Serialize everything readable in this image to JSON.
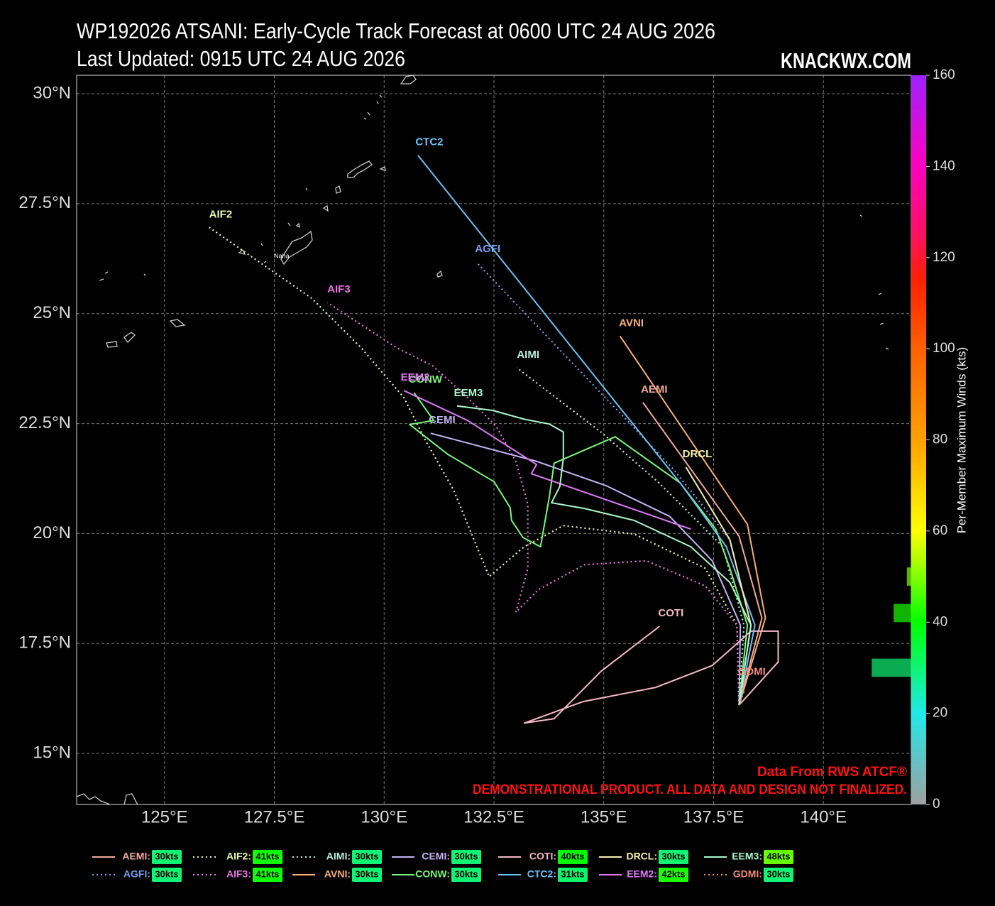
{
  "chart_data": {
    "type": "line",
    "title": "WP192026 ATSANI: Early-Cycle Track Forecast at 0600 UTC 24 AUG 2026",
    "subtitle": "Last Updated: 0915 UTC 24 AUG 2026",
    "brand": "KNACKWX.COM",
    "credit": "Data From RWS ATCF®",
    "disclaimer": "DEMONSTRATIONAL PRODUCT. ALL DATA AND DESIGN NOT FINALIZED.",
    "place_label": "Naha",
    "xlim": [
      123,
      142
    ],
    "ylim": [
      13.84,
      30.42
    ],
    "xticks": [
      {
        "value": 125,
        "label": "125°E"
      },
      {
        "value": 127.5,
        "label": "127.5°E"
      },
      {
        "value": 130,
        "label": "130°E"
      },
      {
        "value": 132.5,
        "label": "132.5°E"
      },
      {
        "value": 135,
        "label": "135°E"
      },
      {
        "value": 137.5,
        "label": "137.5°E"
      },
      {
        "value": 140,
        "label": "140°E"
      }
    ],
    "yticks": [
      {
        "value": 15,
        "label": "15°N"
      },
      {
        "value": 17.5,
        "label": "17.5°N"
      },
      {
        "value": 20,
        "label": "20°N"
      },
      {
        "value": 22.5,
        "label": "22.5°N"
      },
      {
        "value": 25,
        "label": "25°N"
      },
      {
        "value": 27.5,
        "label": "27.5°N"
      },
      {
        "value": 30,
        "label": "30°N"
      }
    ],
    "grid": true,
    "colorbar": {
      "label": "Per-Member Maximum Winds (kts)",
      "lim": [
        0,
        160
      ],
      "ticks": [
        0,
        20,
        40,
        60,
        80,
        100,
        120,
        140,
        160
      ]
    },
    "wind_histogram": {
      "bins": [
        28,
        32,
        36,
        40,
        44,
        48,
        52
      ],
      "counts": [
        9,
        0,
        0,
        4,
        0,
        1
      ]
    },
    "series": [
      {
        "name": "AEMI",
        "legend_label": "AEMI:",
        "color": "#f4a9a0",
        "dash": false,
        "wind": 30,
        "wind_label": "30kts",
        "x": [
          138.08,
          138.6,
          138.08,
          135.89
        ],
        "y": [
          16.1,
          18.08,
          19.94,
          22.98
        ]
      },
      {
        "name": "AGFI",
        "legend_label": "AGFI:",
        "color": "#7b9df0",
        "dash": true,
        "wind": 30,
        "wind_label": "30kts",
        "x": [
          138.08,
          138.35,
          137.87,
          136.58,
          132.1
        ],
        "y": [
          16.1,
          17.92,
          19.86,
          21.47,
          26.17
        ]
      },
      {
        "name": "AIF2",
        "legend_label": "AIF2:",
        "color": "#e8f8a8",
        "dash": true,
        "wind": 41,
        "wind_label": "41kts",
        "x": [
          138.08,
          138.03,
          137.31,
          135.69,
          134.08,
          133.19,
          132.39,
          131.58,
          130.94,
          130.45,
          129.48,
          128.35,
          126.02
        ],
        "y": [
          16.1,
          17.92,
          19.21,
          19.99,
          20.18,
          19.7,
          19.02,
          20.99,
          22.12,
          23.09,
          24.22,
          25.35,
          26.96
        ]
      },
      {
        "name": "AIF3",
        "legend_label": "AIF3:",
        "color": "#ee72e8",
        "dash": true,
        "wind": 41,
        "wind_label": "41kts",
        "x": [
          138.08,
          138.03,
          137.31,
          135.97,
          134.56,
          133.52,
          133.0,
          133.27,
          133.27,
          133.0,
          132.55,
          131.9,
          131.1,
          130.29,
          128.71
        ],
        "y": [
          16.1,
          17.92,
          18.81,
          19.38,
          19.29,
          18.73,
          18.21,
          19.21,
          20.67,
          21.64,
          22.44,
          23.09,
          23.82,
          24.22,
          25.25
        ]
      },
      {
        "name": "AIMI",
        "legend_label": "AIMI:",
        "color": "#b8f0dc",
        "dash": true,
        "wind": 30,
        "wind_label": "30kts",
        "x": [
          138.08,
          138.19,
          137.71,
          136.26,
          134.97,
          133.02
        ],
        "y": [
          16.1,
          17.92,
          19.7,
          21.15,
          22.28,
          23.77
        ]
      },
      {
        "name": "AVNI",
        "legend_label": "AVNI:",
        "color": "#f8b070",
        "dash": false,
        "wind": 30,
        "wind_label": "30kts",
        "x": [
          138.08,
          138.68,
          138.27,
          135.37
        ],
        "y": [
          16.1,
          18.08,
          20.21,
          24.49
        ]
      },
      {
        "name": "CEMI",
        "legend_label": "CEMI:",
        "color": "#c4b4f8",
        "dash": false,
        "wind": 30,
        "wind_label": "30kts",
        "x": [
          138.08,
          138.11,
          137.47,
          136.5,
          135.05,
          133.48,
          131.06
        ],
        "y": [
          16.1,
          17.92,
          19.38,
          20.39,
          21.09,
          21.64,
          22.28
        ]
      },
      {
        "name": "CONW",
        "legend_label": "CONW:",
        "color": "#78f878",
        "dash": false,
        "wind": 30,
        "wind_label": "30kts",
        "x": [
          138.08,
          138.27,
          137.87,
          137.55,
          136.74,
          135.26,
          133.87,
          133.76,
          133.56,
          133.16,
          132.9,
          132.87,
          132.5,
          131.45,
          130.58,
          131.13,
          130.68
        ],
        "y": [
          16.1,
          17.92,
          19.21,
          20.1,
          21.15,
          22.2,
          21.6,
          20.83,
          19.7,
          19.91,
          20.3,
          20.59,
          21.18,
          21.8,
          22.48,
          22.57,
          23.2
        ]
      },
      {
        "name": "COTI",
        "legend_label": "COTI:",
        "color": "#f8b8c8",
        "dash": false,
        "wind": 40,
        "wind_label": "40kts",
        "x": [
          138.08,
          138.97,
          138.97,
          138.35,
          137.47,
          136.18,
          134.53,
          133.19,
          133.87,
          134.94,
          136.27
        ],
        "y": [
          16.1,
          17.08,
          17.78,
          17.78,
          17.0,
          16.5,
          16.18,
          15.69,
          15.79,
          16.87,
          17.89
        ]
      },
      {
        "name": "CTC2",
        "legend_label": "CTC2:",
        "color": "#6cc0f4",
        "dash": false,
        "wind": 31,
        "wind_label": "31kts",
        "x": [
          138.08,
          138.44,
          137.79,
          136.74,
          130.77
        ],
        "y": [
          16.1,
          17.92,
          19.7,
          21.15,
          28.6
        ]
      },
      {
        "name": "DRCL",
        "legend_label": "DRCL:",
        "color": "#f8f0a8",
        "dash": false,
        "wind": 30,
        "wind_label": "30kts",
        "x": [
          138.08,
          138.35,
          137.87,
          136.87
        ],
        "y": [
          16.1,
          17.92,
          19.86,
          21.51
        ]
      },
      {
        "name": "EEM2",
        "legend_label": "EEM2:",
        "color": "#e078f8",
        "dash": false,
        "wind": 42,
        "wind_label": "42kts",
        "x": [
          136.98,
          133.35,
          133.47,
          131.9,
          130.45
        ],
        "y": [
          20.1,
          21.36,
          21.57,
          22.57,
          23.25
        ]
      },
      {
        "name": "EEM3",
        "legend_label": "EEM3:",
        "color": "#a8f8c8",
        "dash": false,
        "wind": 48,
        "wind_label": "48kts",
        "x": [
          138.08,
          138.35,
          137.87,
          136.98,
          135.69,
          134.56,
          133.81,
          134.0,
          134.08,
          134.08,
          133.76,
          133.19,
          132.47,
          131.66
        ],
        "y": [
          16.1,
          17.92,
          18.89,
          19.7,
          20.3,
          20.57,
          20.7,
          21.07,
          21.72,
          22.31,
          22.49,
          22.6,
          22.8,
          22.9
        ]
      },
      {
        "name": "GDMI",
        "legend_label": "GDMI:",
        "color": "#f08878",
        "dash": true,
        "wind": 30,
        "wind_label": "30kts",
        "x": [
          138.08,
          138.19,
          138.11
        ],
        "y": [
          16.1,
          16.4,
          16.56
        ]
      }
    ]
  }
}
